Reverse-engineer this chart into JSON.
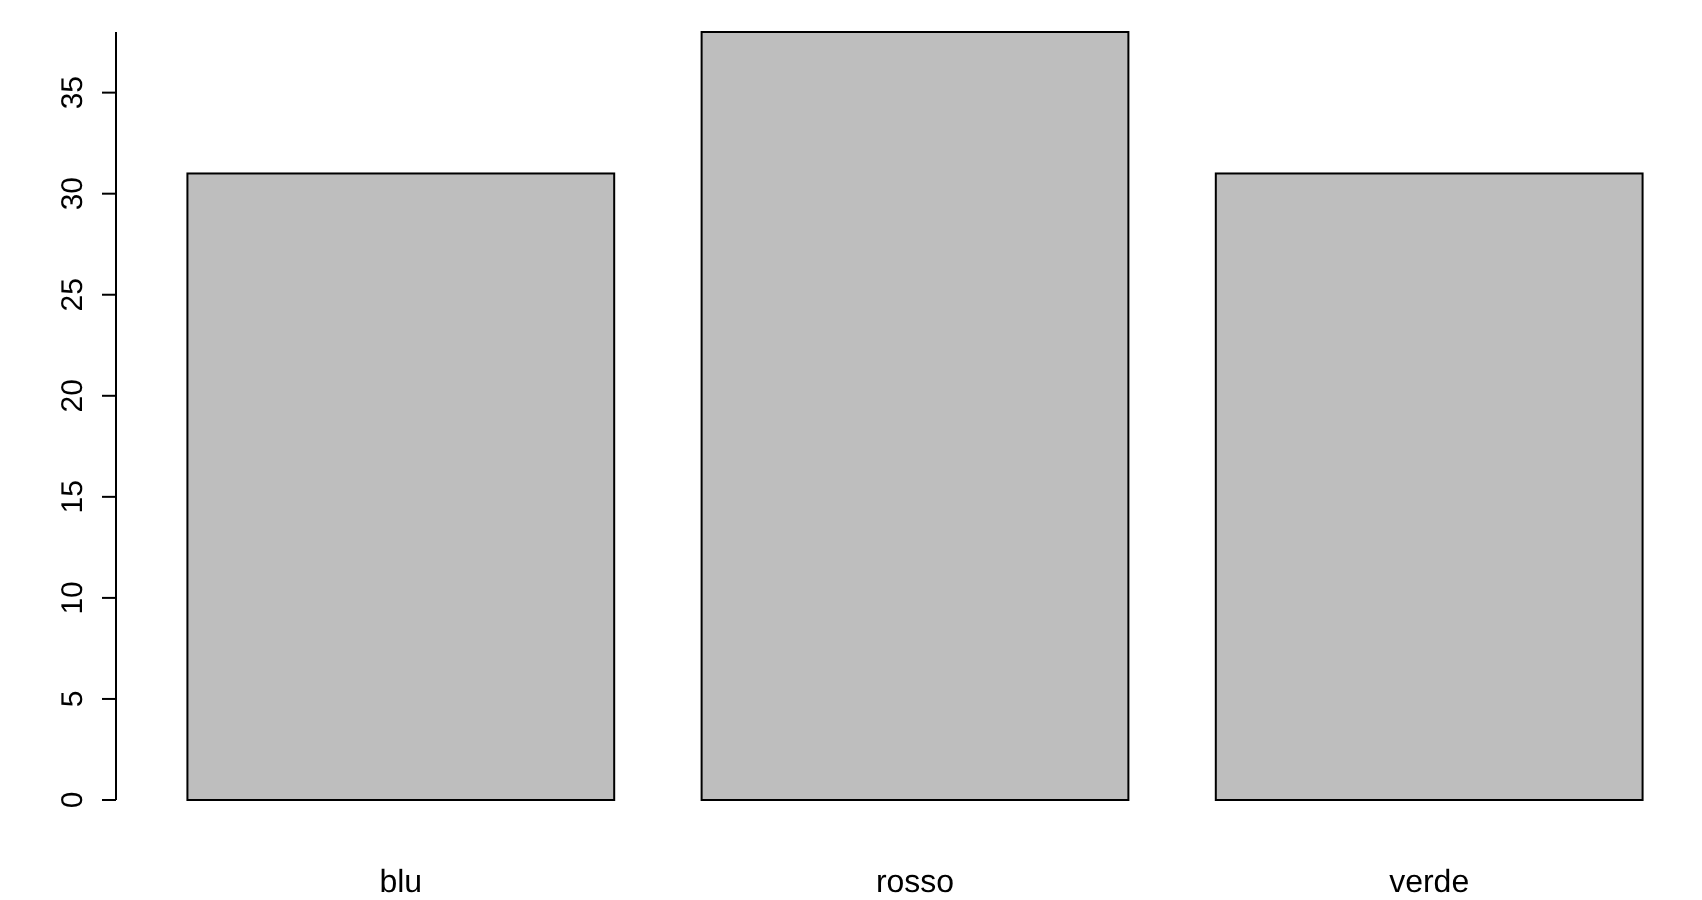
{
  "chart_data": {
    "type": "bar",
    "categories": [
      "blu",
      "rosso",
      "verde"
    ],
    "values": [
      31,
      38,
      31
    ],
    "color": "#bebebe",
    "ylim": [
      0,
      38
    ],
    "yticks": [
      0,
      5,
      10,
      15,
      20,
      25,
      30,
      35
    ],
    "grid": false
  }
}
